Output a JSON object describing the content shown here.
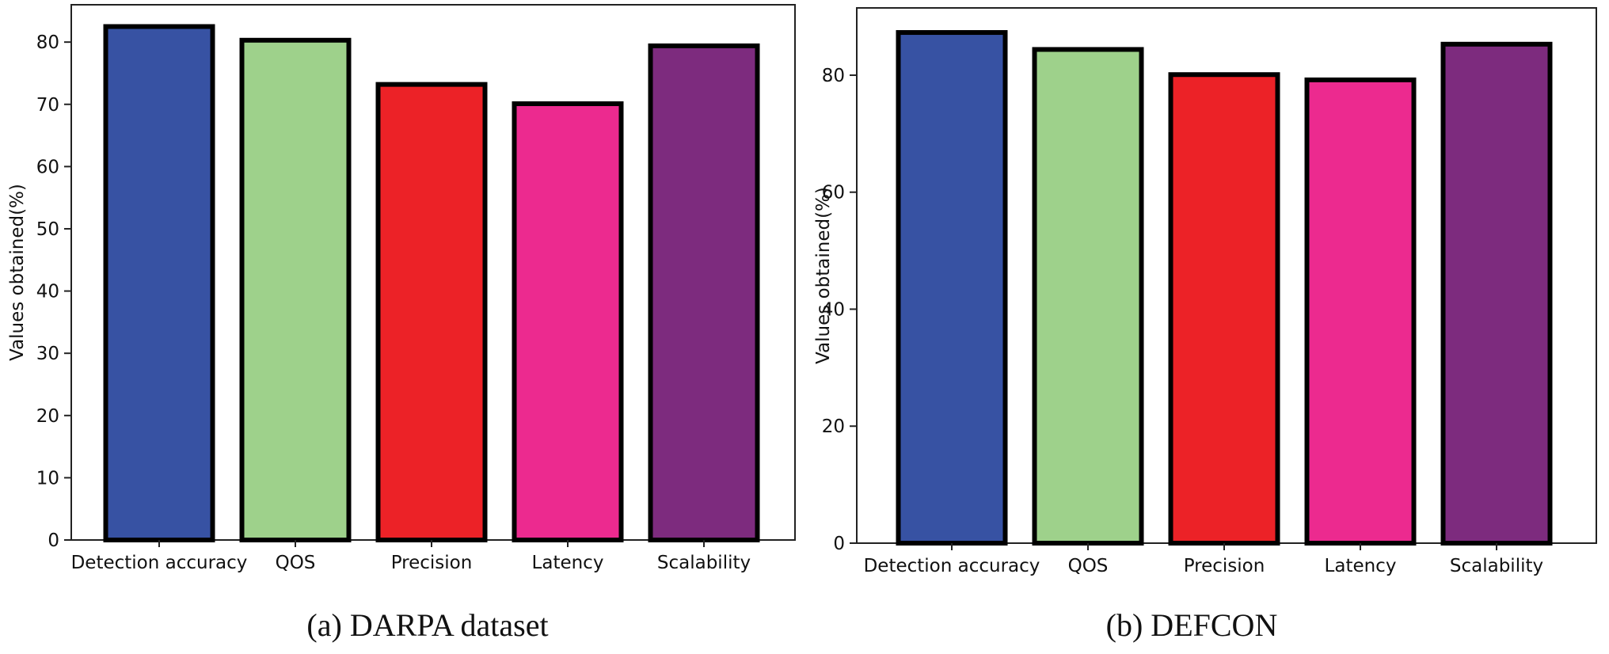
{
  "chart_data": [
    {
      "type": "bar",
      "categories": [
        "Detection accuracy",
        "QOS",
        "Precision",
        "Latency",
        "Scalability"
      ],
      "values": [
        82.5,
        80.3,
        73.2,
        70.1,
        79.4
      ],
      "colors": [
        "#3752a3",
        "#9ed18b",
        "#ec2227",
        "#ec2a8f",
        "#7d2b7e"
      ],
      "ylabel": "Values obtained(%)",
      "xlabel": "",
      "ylim": [
        0,
        86
      ],
      "yticks": [
        0,
        10,
        20,
        30,
        40,
        50,
        60,
        70,
        80
      ],
      "caption": "(a)  DARPA dataset"
    },
    {
      "type": "bar",
      "categories": [
        "Detection accuracy",
        "QOS",
        "Precision",
        "Latency",
        "Scalability"
      ],
      "values": [
        87.3,
        84.4,
        80.1,
        79.2,
        85.3
      ],
      "colors": [
        "#3752a3",
        "#9ed18b",
        "#ec2227",
        "#ec2a8f",
        "#7d2b7e"
      ],
      "ylabel": "Values obtained(%)",
      "xlabel": "",
      "ylim": [
        0,
        91.5
      ],
      "yticks": [
        0,
        20,
        40,
        60,
        80
      ],
      "caption": "(b)  DEFCON"
    }
  ]
}
